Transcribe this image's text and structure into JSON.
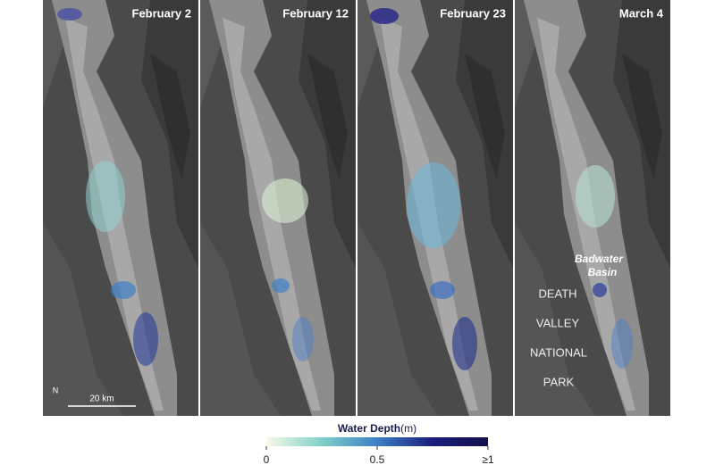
{
  "panels": [
    {
      "title": "February 2"
    },
    {
      "title": "February 12"
    },
    {
      "title": "February 23"
    },
    {
      "title": "March 4"
    }
  ],
  "annotations": {
    "basin": [
      "Badwater",
      "Basin"
    ],
    "park": [
      "DEATH",
      "VALLEY",
      "NATIONAL",
      "PARK"
    ]
  },
  "scale": {
    "north": "N",
    "distance": "20 km"
  },
  "legend": {
    "title": "Water Depth",
    "unit": "(m)",
    "lim": [
      0,
      1
    ],
    "ticks": [
      0,
      0.5,
      {
        "value": 1,
        "label": "≥1"
      }
    ],
    "colors": [
      "#f7fbe6",
      "#7fd0c8",
      "#3d7fc6",
      "#1b1d7e",
      "#12104a"
    ]
  }
}
